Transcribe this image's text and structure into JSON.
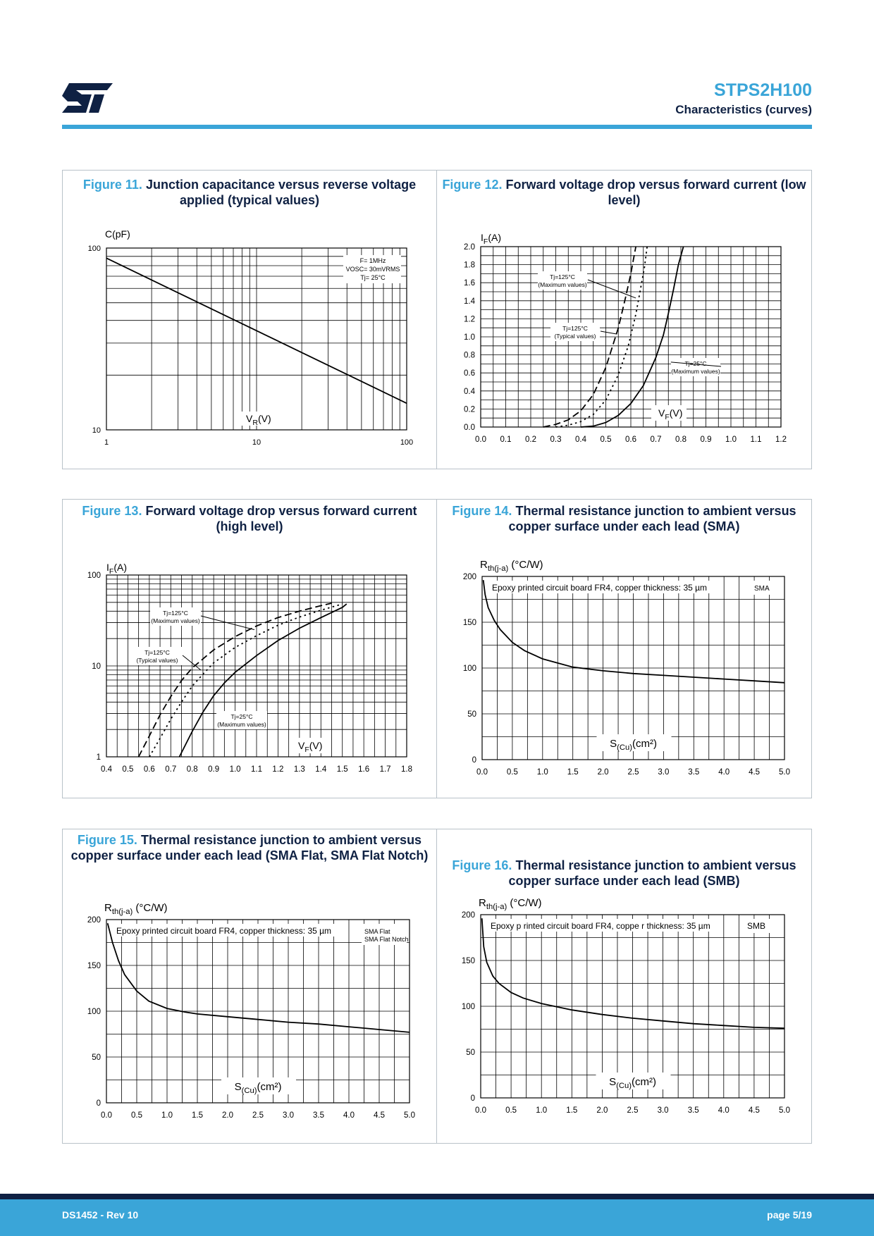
{
  "header": {
    "logo_text": "ST",
    "product": "STPS2H100",
    "section": "Characteristics (curves)"
  },
  "footer": {
    "doc_id": "DS1452 - Rev 10",
    "page": "page 5/19"
  },
  "colors": {
    "accent": "#3aa5d8",
    "navy": "#0f2143",
    "frame": "#b9c2c9"
  },
  "figures": {
    "f11": {
      "number": "Figure 11.",
      "title": "Junction capacitance versus reverse voltage applied (typical values)"
    },
    "f12": {
      "number": "Figure 12.",
      "title": "Forward voltage drop versus forward current (low level)"
    },
    "f13": {
      "number": "Figure 13.",
      "title": "Forward voltage drop versus forward current (high level)"
    },
    "f14": {
      "number": "Figure 14.",
      "title": "Thermal resistance junction to ambient versus copper surface under each lead (SMA)"
    },
    "f15": {
      "number": "Figure 15.",
      "title": "Thermal resistance junction to ambient versus copper surface under each lead (SMA Flat, SMA Flat Notch)"
    },
    "f16": {
      "number": "Figure 16.",
      "title": "Thermal resistance junction to ambient versus copper surface under each lead (SMB)"
    }
  },
  "chart_data": [
    {
      "id": "f11",
      "type": "line",
      "xscale": "log",
      "yscale": "log",
      "xlim": [
        1,
        100
      ],
      "ylim": [
        10,
        100
      ],
      "xticks": [
        "1",
        "10",
        "100"
      ],
      "yticks": [
        "10",
        "100"
      ],
      "ylabel": "C(pF)",
      "xlabel": "VR(V)",
      "annotation": [
        "F= 1MHz",
        "VOSC= 30mVRMS",
        "Tj= 25°C"
      ],
      "series": [
        {
          "x": [
            1,
            100
          ],
          "y": [
            88,
            14
          ]
        }
      ]
    },
    {
      "id": "f12",
      "type": "line",
      "xlim": [
        0,
        1.2
      ],
      "ylim": [
        0,
        2.0
      ],
      "xticks": [
        "0.0",
        "0.1",
        "0.2",
        "0.3",
        "0.4",
        "0.5",
        "0.6",
        "0.7",
        "0.8",
        "0.9",
        "1.0",
        "1.1",
        "1.2"
      ],
      "yticks": [
        "0.0",
        "0.2",
        "0.4",
        "0.6",
        "0.8",
        "1.0",
        "1.2",
        "1.4",
        "1.6",
        "1.8",
        "2.0"
      ],
      "ylabel": "IF(A)",
      "xlabel": "VF(V)",
      "series": [
        {
          "name": "Tj=125°C (Maximum values)",
          "style": "dash",
          "x": [
            0.25,
            0.3,
            0.35,
            0.4,
            0.45,
            0.5,
            0.55,
            0.58,
            0.6,
            0.61,
            0.62
          ],
          "y": [
            0.0,
            0.03,
            0.08,
            0.18,
            0.36,
            0.66,
            1.1,
            1.45,
            1.7,
            1.85,
            2.0
          ]
        },
        {
          "name": "Tj=125°C (Typical values)",
          "style": "dot",
          "x": [
            0.3,
            0.35,
            0.4,
            0.45,
            0.5,
            0.55,
            0.59,
            0.62,
            0.64,
            0.655,
            0.665
          ],
          "y": [
            0.0,
            0.02,
            0.06,
            0.14,
            0.3,
            0.58,
            0.9,
            1.25,
            1.55,
            1.78,
            2.0
          ]
        },
        {
          "name": "Tj=25°C (Maximum values)",
          "style": "solid",
          "x": [
            0.4,
            0.45,
            0.5,
            0.55,
            0.6,
            0.65,
            0.7,
            0.73,
            0.75,
            0.77,
            0.79,
            0.81
          ],
          "y": [
            0.0,
            0.01,
            0.05,
            0.13,
            0.26,
            0.46,
            0.77,
            1.02,
            1.26,
            1.52,
            1.8,
            2.0
          ]
        }
      ]
    },
    {
      "id": "f13",
      "type": "line",
      "yscale": "log",
      "xlim": [
        0.4,
        1.8
      ],
      "ylim": [
        1,
        100
      ],
      "xticks": [
        "0.4",
        "0.5",
        "0.6",
        "0.7",
        "0.8",
        "0.9",
        "1.0",
        "1.1",
        "1.2",
        "1.3",
        "1.4",
        "1.5",
        "1.6",
        "1.7",
        "1.8"
      ],
      "yticks": [
        "1",
        "10",
        "100"
      ],
      "ylabel": "IF(A)",
      "xlabel": "VF(V)",
      "series": [
        {
          "name": "Tj=125°C (Maximum values)",
          "style": "dash",
          "x": [
            0.55,
            0.6,
            0.65,
            0.7,
            0.75,
            0.8,
            0.9,
            1.0,
            1.1,
            1.2,
            1.3,
            1.4,
            1.45
          ],
          "y": [
            1.0,
            1.7,
            2.9,
            4.6,
            6.9,
            9.5,
            15.0,
            21.0,
            27.5,
            34.0,
            40.0,
            46.0,
            49.0
          ]
        },
        {
          "name": "Tj=125°C (Typical values)",
          "style": "dot",
          "x": [
            0.6,
            0.65,
            0.7,
            0.75,
            0.8,
            0.85,
            0.9,
            1.0,
            1.1,
            1.2,
            1.3,
            1.4,
            1.5
          ],
          "y": [
            1.0,
            1.6,
            2.6,
            4.0,
            6.0,
            8.1,
            10.8,
            16.0,
            21.5,
            28.0,
            34.5,
            41.0,
            48.0
          ]
        },
        {
          "name": "Tj=25°C (Maximum values)",
          "style": "solid",
          "x": [
            0.74,
            0.8,
            0.85,
            0.9,
            0.95,
            1.0,
            1.1,
            1.2,
            1.3,
            1.4,
            1.5,
            1.52
          ],
          "y": [
            1.0,
            1.9,
            3.1,
            4.7,
            6.5,
            8.5,
            13.0,
            19.0,
            26.0,
            34.0,
            44.0,
            48.0
          ]
        }
      ]
    },
    {
      "id": "f14",
      "type": "line",
      "xlim": [
        0,
        5.0
      ],
      "ylim": [
        0,
        200
      ],
      "xticks": [
        "0.0",
        "0.5",
        "1.0",
        "1.5",
        "2.0",
        "2.5",
        "3.0",
        "3.5",
        "4.0",
        "4.5",
        "5.0"
      ],
      "yticks": [
        "0",
        "50",
        "100",
        "150",
        "200"
      ],
      "ylabel": "Rth(j-a)(°C/W)",
      "xlabel": "S(Cu)(cm²)",
      "note": "Epoxy printed circuit board FR4, copper thickness:  35 µm",
      "tag": "SMA",
      "series": [
        {
          "x": [
            0.02,
            0.05,
            0.1,
            0.2,
            0.3,
            0.5,
            0.7,
            1.0,
            1.5,
            2.0,
            2.5,
            3.0,
            3.5,
            4.0,
            4.5,
            5.0
          ],
          "y": [
            196,
            180,
            166,
            152,
            142,
            128,
            119,
            110,
            101,
            97,
            94,
            92,
            90,
            88,
            86,
            84
          ]
        }
      ]
    },
    {
      "id": "f15",
      "type": "line",
      "xlim": [
        0,
        5.0
      ],
      "ylim": [
        0,
        200
      ],
      "xticks": [
        "0.0",
        "0.5",
        "1.0",
        "1.5",
        "2.0",
        "2.5",
        "3.0",
        "3.5",
        "4.0",
        "4.5",
        "5.0"
      ],
      "yticks": [
        "0",
        "50",
        "100",
        "150",
        "200"
      ],
      "ylabel": "Rth(j-a)(°C/W)",
      "xlabel": "S(Cu)(cm²)",
      "note": "Epoxy printed circuit board FR4, copper thickness:  35 µm",
      "tag": [
        "SMA Flat",
        "SMA Flat Notch"
      ],
      "series": [
        {
          "x": [
            0.02,
            0.1,
            0.2,
            0.3,
            0.5,
            0.7,
            1.0,
            1.3,
            1.5,
            2.0,
            2.5,
            3.0,
            3.5,
            4.0,
            4.5,
            5.0
          ],
          "y": [
            196,
            175,
            155,
            140,
            122,
            111,
            103,
            99,
            97,
            94,
            91,
            88,
            86,
            83,
            80,
            77
          ]
        }
      ]
    },
    {
      "id": "f16",
      "type": "line",
      "xlim": [
        0,
        5.0
      ],
      "ylim": [
        0,
        200
      ],
      "xticks": [
        "0.0",
        "0.5",
        "1.0",
        "1.5",
        "2.0",
        "2.5",
        "3.0",
        "3.5",
        "4.0",
        "4.5",
        "5.0"
      ],
      "yticks": [
        "0",
        "50",
        "100",
        "150",
        "200"
      ],
      "ylabel": "Rth(j-a)(°C/W)",
      "xlabel": "S(Cu)(cm²)",
      "note": "Epoxy p rinted circuit board FR4, coppe r thickness:  35 µm",
      "tag": "SMB",
      "series": [
        {
          "x": [
            0.02,
            0.05,
            0.1,
            0.2,
            0.3,
            0.5,
            0.7,
            1.0,
            1.5,
            2.0,
            2.5,
            3.0,
            3.5,
            4.0,
            4.5,
            5.0
          ],
          "y": [
            196,
            165,
            148,
            133,
            125,
            115,
            109,
            103,
            96,
            91,
            87,
            84,
            81,
            79,
            77,
            76
          ]
        }
      ]
    }
  ]
}
